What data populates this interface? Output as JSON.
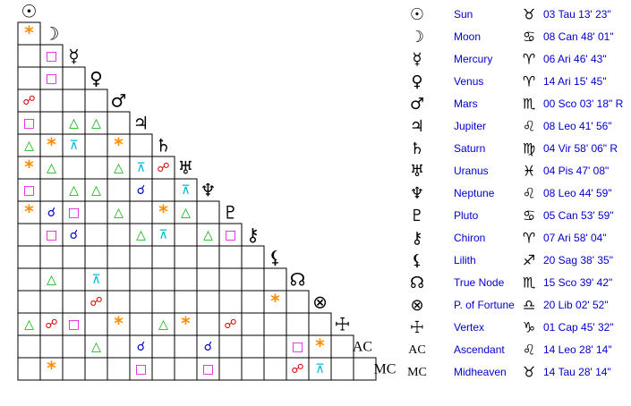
{
  "bodies": [
    {
      "glyph": "☉",
      "name": "Sun",
      "sign": "♉",
      "position": "03 Tau 13' 23\""
    },
    {
      "glyph": "☽",
      "name": "Moon",
      "sign": "♋",
      "position": "08 Can 48' 01\""
    },
    {
      "glyph": "☿",
      "name": "Mercury",
      "sign": "♈",
      "position": "06 Ari 46' 43\""
    },
    {
      "glyph": "♀",
      "name": "Venus",
      "sign": "♈",
      "position": "14 Ari 15' 45\""
    },
    {
      "glyph": "♂",
      "name": "Mars",
      "sign": "♏",
      "position": "00 Sco 03' 18\" R"
    },
    {
      "glyph": "♃",
      "name": "Jupiter",
      "sign": "♌",
      "position": "08 Leo 41' 56\""
    },
    {
      "glyph": "♄",
      "name": "Saturn",
      "sign": "♍",
      "position": "04 Vir 58' 06\" R"
    },
    {
      "glyph": "♅",
      "name": "Uranus",
      "sign": "♓",
      "position": "04 Pis 47' 08\""
    },
    {
      "glyph": "♆",
      "name": "Neptune",
      "sign": "♌",
      "position": "08 Leo 44' 59\""
    },
    {
      "glyph": "♇",
      "name": "Pluto",
      "sign": "♋",
      "position": "05 Can 53' 59\""
    },
    {
      "glyph": "⚷",
      "name": "Chiron",
      "sign": "♈",
      "position": "07 Ari 58' 04\""
    },
    {
      "glyph": "⚸",
      "name": "Lilith",
      "sign": "♐",
      "position": "20 Sag 38' 35\""
    },
    {
      "glyph": "☊",
      "name": "True Node",
      "sign": "♏",
      "position": "15 Sco 39' 42\""
    },
    {
      "glyph": "⊗",
      "name": "P. of Fortune",
      "sign": "♎",
      "position": "20 Lib 02' 52\""
    },
    {
      "glyph": "☩",
      "name": "Vertex",
      "sign": "♑",
      "position": "01 Cap 45' 32\""
    },
    {
      "glyph": "AC",
      "name": "Ascendant",
      "sign": "♌",
      "position": "14 Leo 28' 14\""
    },
    {
      "glyph": "MC",
      "name": "Midheaven",
      "sign": "♉",
      "position": "14 Tau 28' 14\""
    }
  ],
  "grid": {
    "aspect_colors": {
      "*": "#ff8c00",
      "□": "#e000e0",
      "△": "#00b000",
      "☍": "#e00000",
      "☌": "#0000cc",
      "⊼": "#00bcd4"
    },
    "rows": [
      [
        "*"
      ],
      [
        null,
        "□"
      ],
      [
        null,
        "□",
        null
      ],
      [
        "☍",
        null,
        null,
        null
      ],
      [
        "□",
        null,
        "△",
        "△",
        null
      ],
      [
        "△",
        "*",
        "⊼",
        null,
        "*",
        null
      ],
      [
        "*",
        "△",
        null,
        null,
        "△",
        "⊼",
        "☍"
      ],
      [
        "□",
        null,
        "△",
        "△",
        null,
        "☌",
        null,
        "⊼"
      ],
      [
        "*",
        "☌",
        "□",
        null,
        "△",
        null,
        "*",
        "△",
        null
      ],
      [
        null,
        "□",
        "☌",
        null,
        null,
        "△",
        "⊼",
        null,
        "△",
        "□"
      ],
      [
        null,
        null,
        null,
        null,
        null,
        null,
        null,
        null,
        null,
        null,
        null
      ],
      [
        null,
        "△",
        null,
        "⊼",
        null,
        null,
        null,
        null,
        null,
        null,
        null,
        null
      ],
      [
        null,
        null,
        null,
        "☍",
        null,
        null,
        null,
        null,
        null,
        null,
        null,
        "*",
        null
      ],
      [
        "△",
        "☍",
        "□",
        null,
        "*",
        null,
        "△",
        "*",
        null,
        "☍",
        null,
        null,
        null,
        null
      ],
      [
        null,
        null,
        null,
        "△",
        null,
        "☌",
        null,
        null,
        "☌",
        null,
        null,
        null,
        "□",
        "*",
        null
      ],
      [
        null,
        "*",
        null,
        null,
        null,
        "□",
        null,
        null,
        "□",
        null,
        null,
        null,
        "☍",
        "⊼",
        null,
        null
      ]
    ]
  }
}
